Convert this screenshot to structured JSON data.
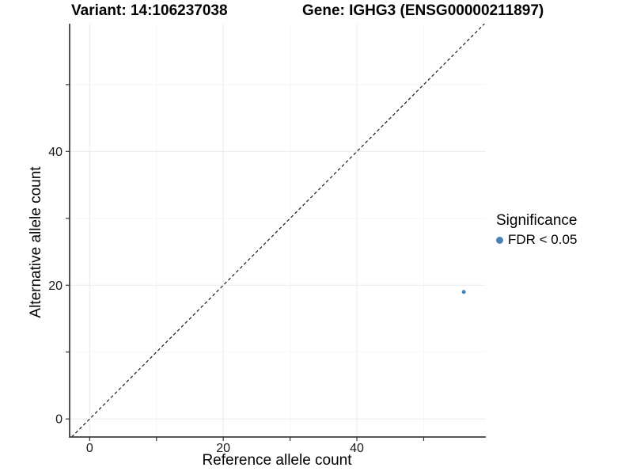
{
  "header": {
    "title_left": "Variant: 14:106237038",
    "title_right": "Gene: IGHG3 (ENSG00000211897)"
  },
  "chart_data": {
    "type": "scatter",
    "title_left": "Variant: 14:106237038",
    "title_right": "Gene: IGHG3 (ENSG00000211897)",
    "xlabel": "Reference allele count",
    "ylabel": "Alternative allele count",
    "xlim": [
      -3.0,
      59.3
    ],
    "ylim": [
      -2.7,
      59.1
    ],
    "x_ticks": {
      "values": [
        0,
        10,
        20,
        30,
        40,
        50
      ],
      "labels": [
        "0",
        "",
        "20",
        "",
        "40",
        ""
      ]
    },
    "y_ticks": {
      "values": [
        0,
        10,
        20,
        30,
        40,
        50
      ],
      "labels": [
        "0",
        "",
        "20",
        "",
        "40",
        ""
      ]
    },
    "grid": {
      "major": [
        0,
        20,
        40
      ],
      "minor": [
        10,
        30,
        50
      ]
    },
    "points": [
      {
        "x": 56,
        "y": 19,
        "significance": "FDR < 0.05"
      }
    ],
    "identity_line": {
      "type": "dashed",
      "slope": 1,
      "intercept": 0
    },
    "legend": {
      "title": "Significance",
      "position": "right",
      "items": [
        {
          "label": "FDR < 0.05",
          "color": "#4682b4"
        }
      ]
    },
    "colors": {
      "point": "#4682b4",
      "identity_line": "#1a1a1a",
      "axis_line": "#404040",
      "tick": "#333333",
      "tick_label": "#1a1a1a",
      "grid_major": "#ececec",
      "grid_minor": "#f5f5f5",
      "background": "#ffffff"
    },
    "point_radius": 2.5
  }
}
